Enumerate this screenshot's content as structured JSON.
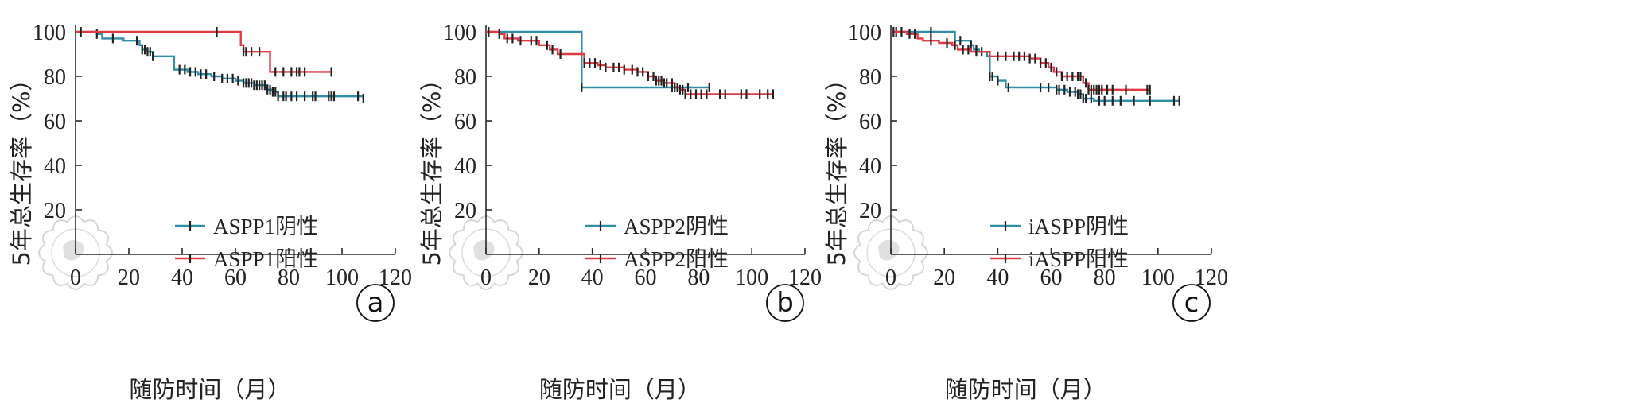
{
  "chart_data": [
    {
      "type": "line",
      "panel_label": "a",
      "xlabel": "随防时间（月）",
      "ylabel": "5年总生存率（%）",
      "xlim": [
        0,
        120
      ],
      "ylim": [
        0,
        100
      ],
      "xticks": [
        0,
        20,
        40,
        60,
        80,
        100,
        120
      ],
      "yticks": [
        20,
        40,
        60,
        80,
        100
      ],
      "grid": false,
      "legend_position": "center",
      "series": [
        {
          "name": "ASPP1阴性",
          "color": "#2e8fa6",
          "step_points": [
            [
              0,
              100
            ],
            [
              8,
              99
            ],
            [
              10,
              97
            ],
            [
              18,
              96
            ],
            [
              24,
              94
            ],
            [
              25,
              92
            ],
            [
              27,
              91
            ],
            [
              29,
              89
            ],
            [
              35,
              89
            ],
            [
              37,
              83
            ],
            [
              42,
              82
            ],
            [
              46,
              81
            ],
            [
              51,
              80
            ],
            [
              55,
              79
            ],
            [
              60,
              78
            ],
            [
              63,
              77
            ],
            [
              67,
              76
            ],
            [
              72,
              74
            ],
            [
              74,
              73
            ],
            [
              76,
              71
            ],
            [
              78,
              71
            ],
            [
              108,
              70
            ]
          ],
          "censored_x": [
            8,
            14,
            23,
            25,
            26,
            27,
            28,
            29,
            39,
            41,
            43,
            45,
            47,
            49,
            52,
            55,
            57,
            59,
            61,
            63,
            64,
            65,
            66,
            67,
            68,
            69,
            70,
            71,
            72,
            73,
            74,
            75,
            76,
            78,
            79,
            81,
            83,
            86,
            89,
            90,
            95,
            96,
            97,
            106,
            108
          ]
        },
        {
          "name": "ASPP1阳性",
          "color": "#e03a45",
          "step_points": [
            [
              0,
              100
            ],
            [
              60,
              100
            ],
            [
              62,
              94
            ],
            [
              63,
              91
            ],
            [
              66,
              91
            ],
            [
              72,
              91
            ],
            [
              73,
              82
            ],
            [
              96,
              82
            ]
          ],
          "censored_x": [
            2,
            53,
            63,
            64,
            66,
            69,
            75,
            78,
            81,
            83,
            84,
            86,
            96
          ]
        }
      ]
    },
    {
      "type": "line",
      "panel_label": "b",
      "xlabel": "随防时间（月）",
      "ylabel": "5年总生存率（%）",
      "xlim": [
        0,
        120
      ],
      "ylim": [
        0,
        100
      ],
      "xticks": [
        0,
        20,
        40,
        60,
        80,
        100,
        120
      ],
      "yticks": [
        20,
        40,
        60,
        80,
        100
      ],
      "grid": false,
      "legend_position": "center",
      "series": [
        {
          "name": "ASPP2阴性",
          "color": "#2e8fa6",
          "step_points": [
            [
              0,
              100
            ],
            [
              36,
              100
            ],
            [
              36,
              75
            ],
            [
              84,
              75
            ]
          ],
          "censored_x": [
            36,
            70,
            76,
            84
          ]
        },
        {
          "name": "ASPP2阳性",
          "color": "#e03a45",
          "step_points": [
            [
              0,
              100
            ],
            [
              5,
              99
            ],
            [
              7,
              97
            ],
            [
              12,
              96
            ],
            [
              18,
              96
            ],
            [
              20,
              94
            ],
            [
              24,
              92
            ],
            [
              27,
              90
            ],
            [
              35,
              90
            ],
            [
              37,
              86
            ],
            [
              42,
              85
            ],
            [
              45,
              84
            ],
            [
              52,
              83
            ],
            [
              57,
              82
            ],
            [
              61,
              80
            ],
            [
              64,
              78
            ],
            [
              67,
              77
            ],
            [
              71,
              75
            ],
            [
              73,
              74
            ],
            [
              75,
              72
            ],
            [
              108,
              72
            ]
          ],
          "censored_x": [
            1,
            5,
            8,
            10,
            13,
            17,
            19,
            23,
            25,
            28,
            37,
            39,
            41,
            43,
            45,
            48,
            50,
            52,
            55,
            57,
            59,
            61,
            63,
            64,
            65,
            66,
            67,
            68,
            70,
            71,
            72,
            73,
            74,
            75,
            77,
            79,
            81,
            83,
            88,
            90,
            96,
            98,
            103,
            106,
            108
          ]
        }
      ]
    },
    {
      "type": "line",
      "panel_label": "c",
      "xlabel": "随防时间（月）",
      "ylabel": "5年总生存率（%）",
      "xlim": [
        0,
        120
      ],
      "ylim": [
        0,
        100
      ],
      "xticks": [
        0,
        20,
        40,
        60,
        80,
        100,
        120
      ],
      "yticks": [
        20,
        40,
        60,
        80,
        100
      ],
      "grid": false,
      "legend_position": "center",
      "series": [
        {
          "name": "iASPP阴性",
          "color": "#2e8fa6",
          "step_points": [
            [
              0,
              100
            ],
            [
              24,
              100
            ],
            [
              24,
              96
            ],
            [
              30,
              94
            ],
            [
              31,
              92
            ],
            [
              33,
              91
            ],
            [
              36,
              89
            ],
            [
              37,
              80
            ],
            [
              40,
              78
            ],
            [
              43,
              75
            ],
            [
              57,
              75
            ],
            [
              62,
              74
            ],
            [
              66,
              73
            ],
            [
              70,
              72
            ],
            [
              72,
              70
            ],
            [
              76,
              69
            ],
            [
              108,
              69
            ]
          ],
          "censored_x": [
            2,
            15,
            26,
            30,
            32,
            34,
            37,
            38,
            40,
            44,
            56,
            59,
            62,
            63,
            65,
            67,
            69,
            70,
            71,
            72,
            73,
            75,
            78,
            80,
            83,
            86,
            91,
            97,
            106,
            108
          ]
        },
        {
          "name": "iASPP阳性",
          "color": "#e03a45",
          "step_points": [
            [
              0,
              100
            ],
            [
              6,
              99
            ],
            [
              10,
              97
            ],
            [
              12,
              96
            ],
            [
              18,
              95
            ],
            [
              23,
              94
            ],
            [
              25,
              92
            ],
            [
              30,
              91
            ],
            [
              35,
              91
            ],
            [
              37,
              89
            ],
            [
              45,
              89
            ],
            [
              52,
              88
            ],
            [
              56,
              86
            ],
            [
              59,
              84
            ],
            [
              61,
              82
            ],
            [
              64,
              80
            ],
            [
              70,
              80
            ],
            [
              72,
              77
            ],
            [
              74,
              74
            ],
            [
              97,
              74
            ]
          ],
          "censored_x": [
            1,
            4,
            7,
            9,
            15,
            21,
            24,
            27,
            29,
            32,
            40,
            43,
            46,
            48,
            50,
            52,
            54,
            56,
            58,
            60,
            62,
            64,
            66,
            68,
            70,
            71,
            73,
            74,
            75,
            76,
            77,
            78,
            79,
            81,
            83,
            88,
            96,
            97
          ]
        }
      ]
    }
  ]
}
